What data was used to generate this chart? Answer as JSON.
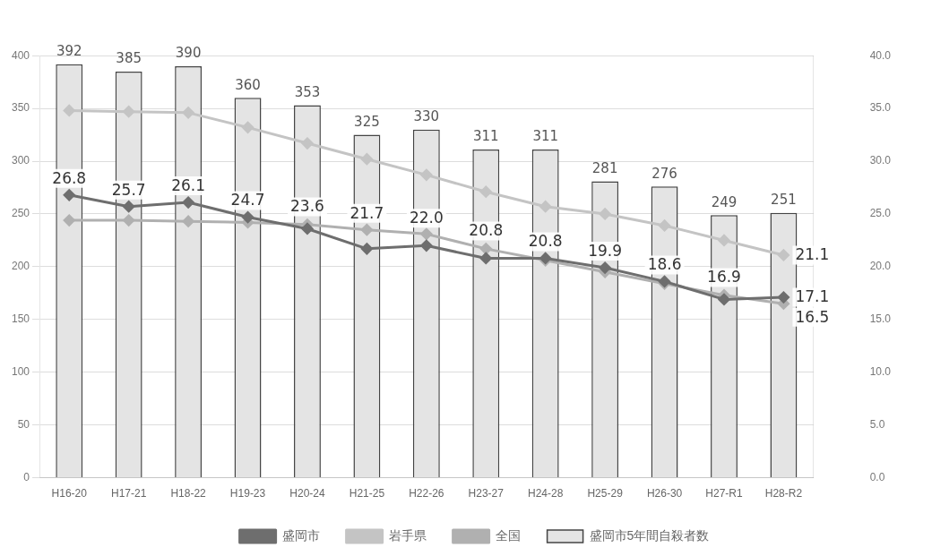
{
  "chart_data": {
    "type": "bar",
    "categories": [
      "H16-20",
      "H17-21",
      "H18-22",
      "H19-23",
      "H20-24",
      "H21-25",
      "H22-26",
      "H23-27",
      "H24-28",
      "H25-29",
      "H26-30",
      "H27-R1",
      "H28-R2"
    ],
    "series": [
      {
        "name": "盛岡市5年間自殺者数",
        "color": "#e4e4e4",
        "values": [
          392,
          385,
          390,
          360,
          353,
          325,
          330,
          311,
          311,
          281,
          276,
          249,
          251
        ],
        "value_labels": [
          "392",
          "385",
          "390",
          "360",
          "353",
          "325",
          "330",
          "311",
          "311",
          "281",
          "276",
          "249",
          "251"
        ]
      },
      {
        "name": "盛岡市",
        "type": "line",
        "axis": "y2",
        "color": "#6e6e6e",
        "values": [
          26.8,
          25.7,
          26.1,
          24.7,
          23.6,
          21.7,
          22.0,
          20.8,
          20.8,
          19.9,
          18.6,
          16.9,
          17.1
        ],
        "value_labels": [
          "26.8",
          "25.7",
          "26.1",
          "24.7",
          "23.6",
          "21.7",
          "22.0",
          "20.8",
          "20.8",
          "19.9",
          "18.6",
          "16.9",
          "17.1"
        ]
      },
      {
        "name": "岩手県",
        "type": "line",
        "axis": "y2",
        "color": "#c4c4c4",
        "values": [
          34.8,
          34.7,
          34.6,
          33.2,
          31.7,
          30.2,
          28.7,
          27.1,
          25.7,
          25.0,
          23.9,
          22.5,
          21.1
        ],
        "value_labels": [
          null,
          null,
          null,
          null,
          null,
          null,
          null,
          null,
          null,
          null,
          null,
          null,
          "21.1"
        ]
      },
      {
        "name": "全国",
        "type": "line",
        "axis": "y2",
        "color": "#b0b0b0",
        "values": [
          24.4,
          24.4,
          24.3,
          24.2,
          24.0,
          23.5,
          23.1,
          21.7,
          20.6,
          19.5,
          18.4,
          17.3,
          16.5
        ],
        "value_labels": [
          null,
          null,
          null,
          null,
          null,
          null,
          null,
          null,
          null,
          null,
          null,
          null,
          "16.5"
        ]
      }
    ],
    "ylim": [
      0,
      400
    ],
    "yticks": [
      0,
      50,
      100,
      150,
      200,
      250,
      300,
      350,
      400
    ],
    "y2lim": [
      0,
      40
    ],
    "y2ticks": [
      {
        "value": 0,
        "label": "0.0"
      },
      {
        "value": 5,
        "label": "5.0"
      },
      {
        "value": 10,
        "label": "10.0"
      },
      {
        "value": 15,
        "label": "15.0"
      },
      {
        "value": 20,
        "label": "20.0"
      },
      {
        "value": 25,
        "label": "25.0"
      },
      {
        "value": 30,
        "label": "30.0"
      },
      {
        "value": 35,
        "label": "35.0"
      },
      {
        "value": 40,
        "label": "40.0"
      }
    ],
    "grid": "y",
    "legend": "bottom",
    "marker": "diamond",
    "line_style": "solid"
  }
}
